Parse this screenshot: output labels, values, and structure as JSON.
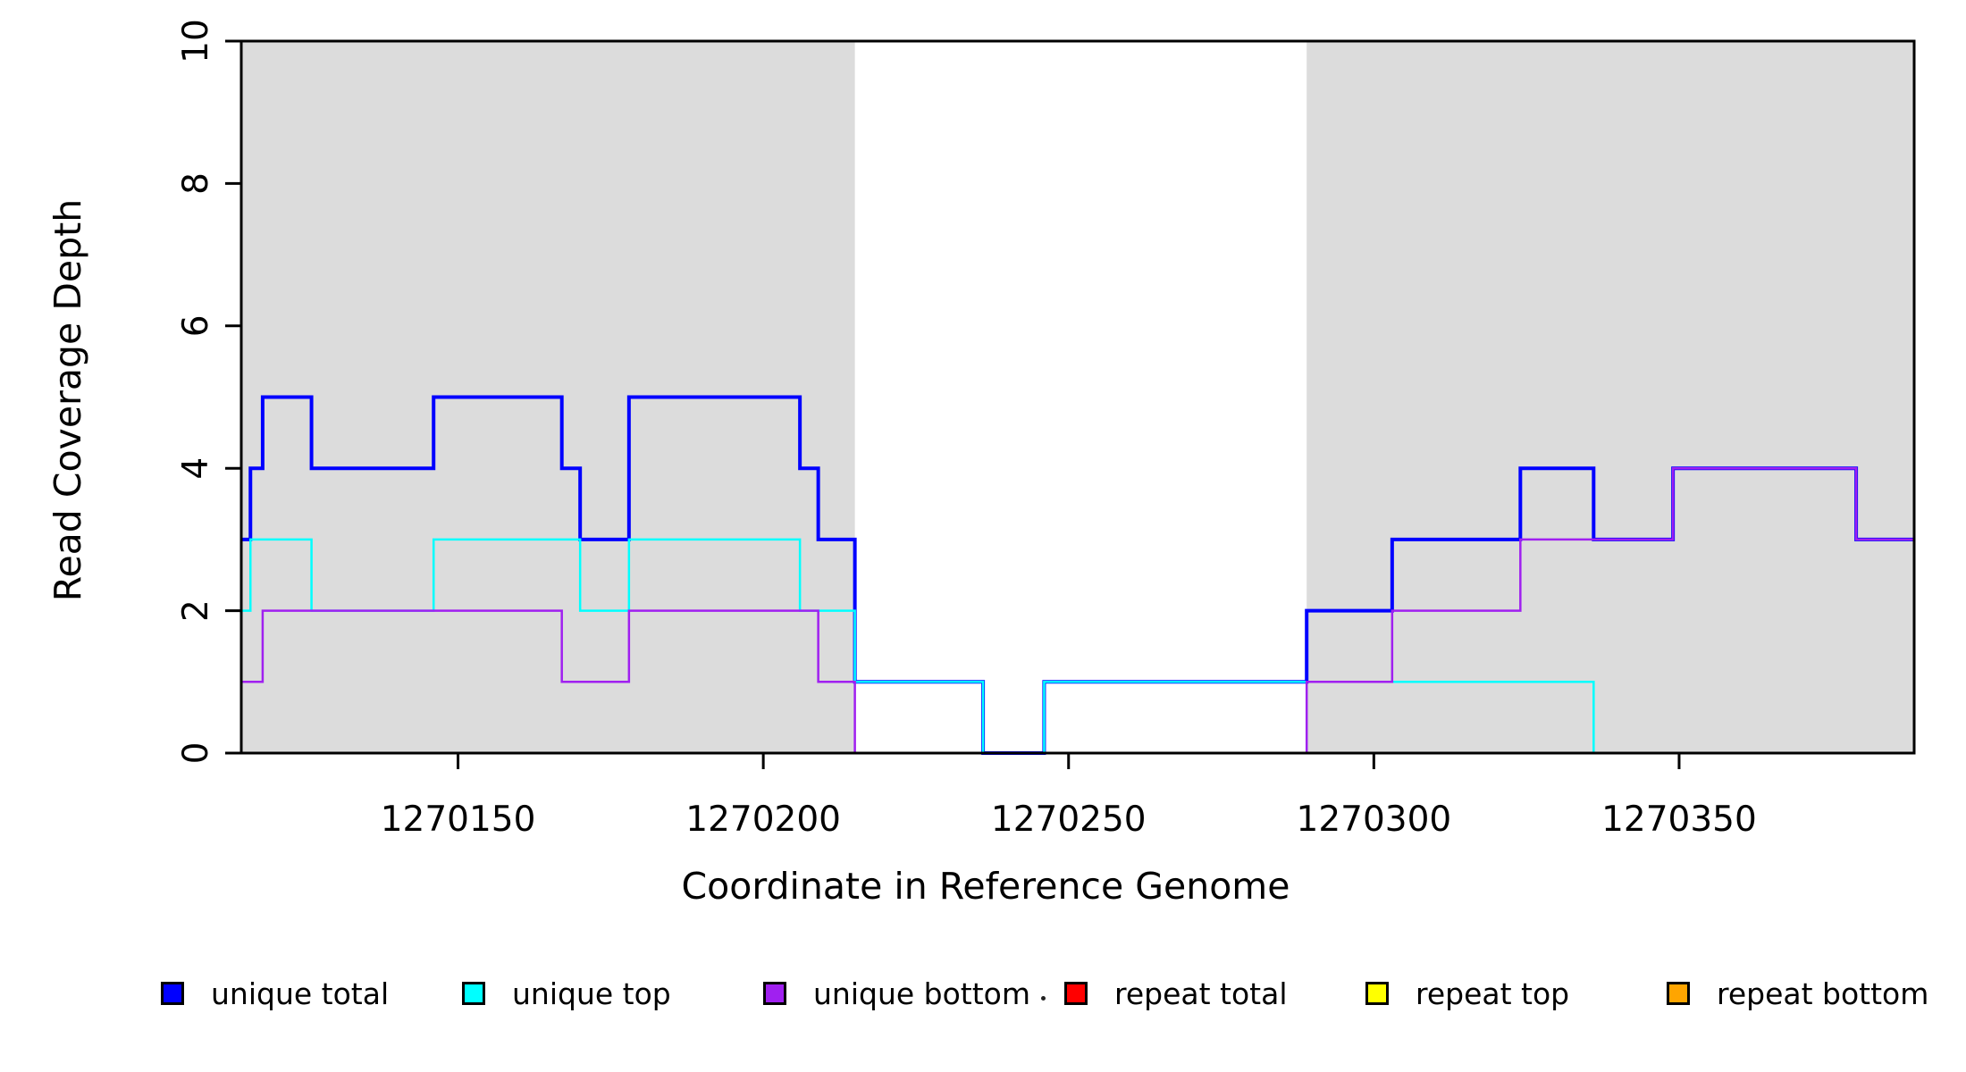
{
  "chart_data": {
    "type": "line",
    "subtype": "step",
    "title": "",
    "xlabel": "Coordinate in Reference Genome",
    "ylabel": "Read Coverage Depth",
    "xlim": [
      1270114.5,
      1270388.5
    ],
    "ylim": [
      0,
      10
    ],
    "grid": false,
    "xticks": {
      "values": [
        1270150,
        1270200,
        1270250,
        1270300,
        1270350
      ],
      "labels": [
        "1270150",
        "1270200",
        "1270250",
        "1270300",
        "1270350"
      ]
    },
    "yticks": {
      "values": [
        0,
        2,
        4,
        6,
        8,
        10
      ],
      "labels": [
        "0",
        "2",
        "4",
        "6",
        "8",
        "10"
      ]
    },
    "shaded_regions": [
      {
        "name": "shaded-region-left",
        "x0": 1270114.5,
        "x1": 1270215,
        "color": "#DCDCDC"
      },
      {
        "name": "shaded-region-right",
        "x0": 1270289,
        "x1": 1270388.5,
        "color": "#DCDCDC"
      }
    ],
    "series": [
      {
        "name": "unique total",
        "color": "#0000FF",
        "line_width": 4,
        "breakpoints": [
          [
            1270114.5,
            3
          ],
          [
            1270116,
            4
          ],
          [
            1270118,
            5
          ],
          [
            1270126,
            4
          ],
          [
            1270146,
            5
          ],
          [
            1270167,
            4
          ],
          [
            1270170,
            3
          ],
          [
            1270178,
            5
          ],
          [
            1270206,
            4
          ],
          [
            1270209,
            3
          ],
          [
            1270215,
            1
          ],
          [
            1270236,
            0
          ],
          [
            1270246,
            1
          ],
          [
            1270289,
            2
          ],
          [
            1270303,
            3
          ],
          [
            1270324,
            4
          ],
          [
            1270336,
            3
          ],
          [
            1270349,
            4
          ],
          [
            1270379,
            3
          ],
          [
            1270388.5,
            3
          ]
        ]
      },
      {
        "name": "unique top",
        "color": "#00FFFF",
        "line_width": 2.5,
        "breakpoints": [
          [
            1270114.5,
            2
          ],
          [
            1270116,
            3
          ],
          [
            1270126,
            2
          ],
          [
            1270146,
            3
          ],
          [
            1270170,
            2
          ],
          [
            1270178,
            3
          ],
          [
            1270206,
            2
          ],
          [
            1270215,
            1
          ],
          [
            1270236,
            0
          ],
          [
            1270246,
            1
          ],
          [
            1270336,
            0
          ],
          [
            1270388.5,
            0
          ]
        ]
      },
      {
        "name": "unique bottom",
        "color": "#A020F0",
        "line_width": 2.5,
        "breakpoints": [
          [
            1270114.5,
            1
          ],
          [
            1270118,
            2
          ],
          [
            1270167,
            1
          ],
          [
            1270178,
            2
          ],
          [
            1270209,
            1
          ],
          [
            1270215,
            0
          ],
          [
            1270289,
            1
          ],
          [
            1270303,
            2
          ],
          [
            1270324,
            3
          ],
          [
            1270349,
            4
          ],
          [
            1270379,
            3
          ],
          [
            1270388.5,
            3
          ]
        ]
      },
      {
        "name": "repeat total",
        "color": "#FF0000",
        "line_width": 3,
        "breakpoints": [
          [
            1270114.5,
            0
          ],
          [
            1270388.5,
            0
          ]
        ]
      },
      {
        "name": "repeat top",
        "color": "#FFFF00",
        "line_width": 3,
        "breakpoints": [
          [
            1270114.5,
            0
          ],
          [
            1270388.5,
            0
          ]
        ]
      },
      {
        "name": "repeat bottom",
        "color": "#FFA500",
        "line_width": 3,
        "breakpoints": [
          [
            1270114.5,
            0
          ],
          [
            1270388.5,
            0
          ]
        ]
      }
    ],
    "draw_order": [
      "repeat total",
      "repeat top",
      "repeat bottom",
      "unique total",
      "unique top",
      "unique bottom"
    ],
    "legend": {
      "position": "bottom",
      "items": [
        {
          "label": "unique total",
          "color": "#0000FF"
        },
        {
          "label": "unique top",
          "color": "#00FFFF"
        },
        {
          "label": "unique bottom",
          "color": "#A020F0"
        },
        {
          "label": "repeat total",
          "color": "#FF0000"
        },
        {
          "label": "repeat top",
          "color": "#FFFF00"
        },
        {
          "label": "repeat bottom",
          "color": "#FFA500"
        }
      ]
    }
  }
}
